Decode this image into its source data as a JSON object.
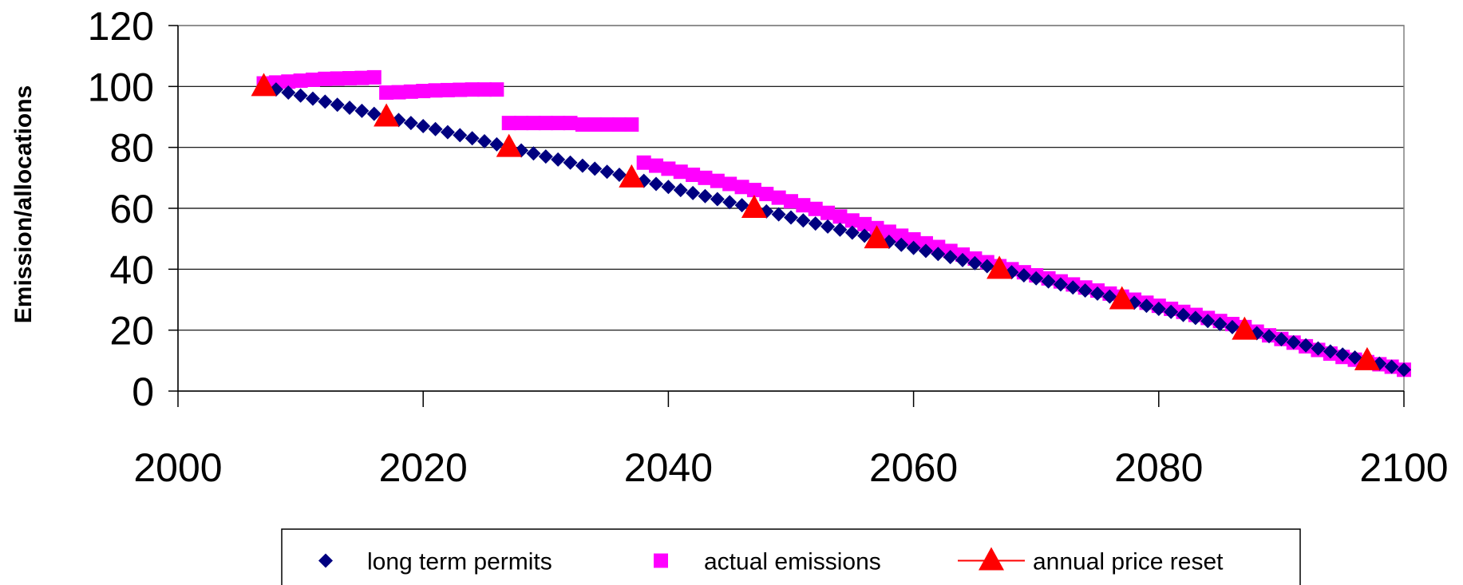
{
  "chart_data": {
    "type": "scatter",
    "ylabel": "Emission/allocations",
    "xlabel": "",
    "xlim": [
      2000,
      2100
    ],
    "ylim": [
      0,
      120
    ],
    "x_ticks": [
      "2000",
      "2020",
      "2040",
      "2060",
      "2080",
      "2100"
    ],
    "y_ticks": [
      "0",
      "20",
      "40",
      "60",
      "80",
      "100",
      "120"
    ],
    "grid": "horizontal",
    "legend_position": "bottom",
    "series": [
      {
        "name": "long term permits",
        "color": "#000080",
        "marker": "diamond",
        "x": [
          2007,
          2008,
          2009,
          2010,
          2011,
          2012,
          2013,
          2014,
          2015,
          2016,
          2017,
          2018,
          2019,
          2020,
          2021,
          2022,
          2023,
          2024,
          2025,
          2026,
          2027,
          2028,
          2029,
          2030,
          2031,
          2032,
          2033,
          2034,
          2035,
          2036,
          2037,
          2038,
          2039,
          2040,
          2041,
          2042,
          2043,
          2044,
          2045,
          2046,
          2047,
          2048,
          2049,
          2050,
          2051,
          2052,
          2053,
          2054,
          2055,
          2056,
          2057,
          2058,
          2059,
          2060,
          2061,
          2062,
          2063,
          2064,
          2065,
          2066,
          2067,
          2068,
          2069,
          2070,
          2071,
          2072,
          2073,
          2074,
          2075,
          2076,
          2077,
          2078,
          2079,
          2080,
          2081,
          2082,
          2083,
          2084,
          2085,
          2086,
          2087,
          2088,
          2089,
          2090,
          2091,
          2092,
          2093,
          2094,
          2095,
          2096,
          2097,
          2098,
          2099,
          2100
        ],
        "y": [
          100,
          99,
          98,
          97,
          96,
          95,
          94,
          93,
          92,
          91,
          90,
          89,
          88,
          87,
          86,
          85,
          84,
          83,
          82,
          81,
          80,
          79,
          78,
          77,
          76,
          75,
          74,
          73,
          72,
          71,
          70,
          69,
          68,
          67,
          66,
          65,
          64,
          63,
          62,
          61,
          60,
          59,
          58,
          57,
          56,
          55,
          54,
          53,
          52,
          51,
          50,
          49,
          48,
          47,
          46,
          45,
          44,
          43,
          42,
          41,
          40,
          39,
          38,
          37,
          36,
          35,
          34,
          33,
          32,
          31,
          30,
          29,
          28,
          27,
          26,
          25,
          24,
          23,
          22,
          21,
          20,
          19,
          18,
          17,
          16,
          15,
          14,
          13,
          12,
          11,
          10,
          9,
          8,
          7
        ]
      },
      {
        "name": "actual emissions",
        "color": "#FF00FF",
        "marker": "square",
        "x": [
          2007,
          2008,
          2009,
          2010,
          2011,
          2012,
          2013,
          2014,
          2015,
          2016,
          2017,
          2018,
          2019,
          2020,
          2021,
          2022,
          2023,
          2024,
          2025,
          2026,
          2027,
          2028,
          2029,
          2030,
          2031,
          2032,
          2033,
          2034,
          2035,
          2036,
          2037,
          2038,
          2039,
          2040,
          2041,
          2042,
          2043,
          2044,
          2045,
          2046,
          2047,
          2048,
          2049,
          2050,
          2051,
          2052,
          2053,
          2054,
          2055,
          2056,
          2057,
          2058,
          2059,
          2060,
          2061,
          2062,
          2063,
          2064,
          2065,
          2066,
          2067,
          2068,
          2069,
          2070,
          2071,
          2072,
          2073,
          2074,
          2075,
          2076,
          2077,
          2078,
          2079,
          2080,
          2081,
          2082,
          2083,
          2084,
          2085,
          2086,
          2087,
          2088,
          2089,
          2090,
          2091,
          2092,
          2093,
          2094,
          2095,
          2096,
          2097,
          2098,
          2099,
          2100
        ],
        "y": [
          101,
          101.3,
          101.6,
          101.9,
          102.2,
          102.5,
          102.6,
          102.7,
          102.8,
          103,
          98,
          98.1,
          98.3,
          98.5,
          98.7,
          98.8,
          98.9,
          99,
          99,
          99,
          88,
          88,
          88,
          88,
          88,
          88,
          87.5,
          87.5,
          87.5,
          87.5,
          87.5,
          75,
          74,
          73,
          72,
          71,
          70,
          69,
          68,
          67,
          66,
          64.7,
          63.5,
          62.3,
          61,
          59.8,
          58.5,
          57.3,
          56,
          54.8,
          53.5,
          52.3,
          51,
          49.8,
          48.5,
          47.3,
          46,
          44.8,
          43.5,
          42.3,
          41,
          40,
          39,
          38,
          37,
          36,
          35,
          34,
          33,
          32,
          31,
          30,
          29,
          28,
          27,
          26,
          25,
          24,
          23,
          22,
          21,
          19.5,
          18.3,
          17.1,
          15.9,
          14.7,
          13.5,
          12.3,
          11.2,
          10.3,
          9.5,
          8.8,
          8,
          7
        ]
      },
      {
        "name": "annual price reset",
        "color": "#FF0000",
        "marker": "triangle",
        "x": [
          2007,
          2017,
          2027,
          2037,
          2047,
          2057,
          2067,
          2077,
          2087,
          2097
        ],
        "y": [
          100,
          90,
          80,
          70,
          60,
          50,
          40,
          30,
          20,
          10
        ]
      }
    ]
  }
}
